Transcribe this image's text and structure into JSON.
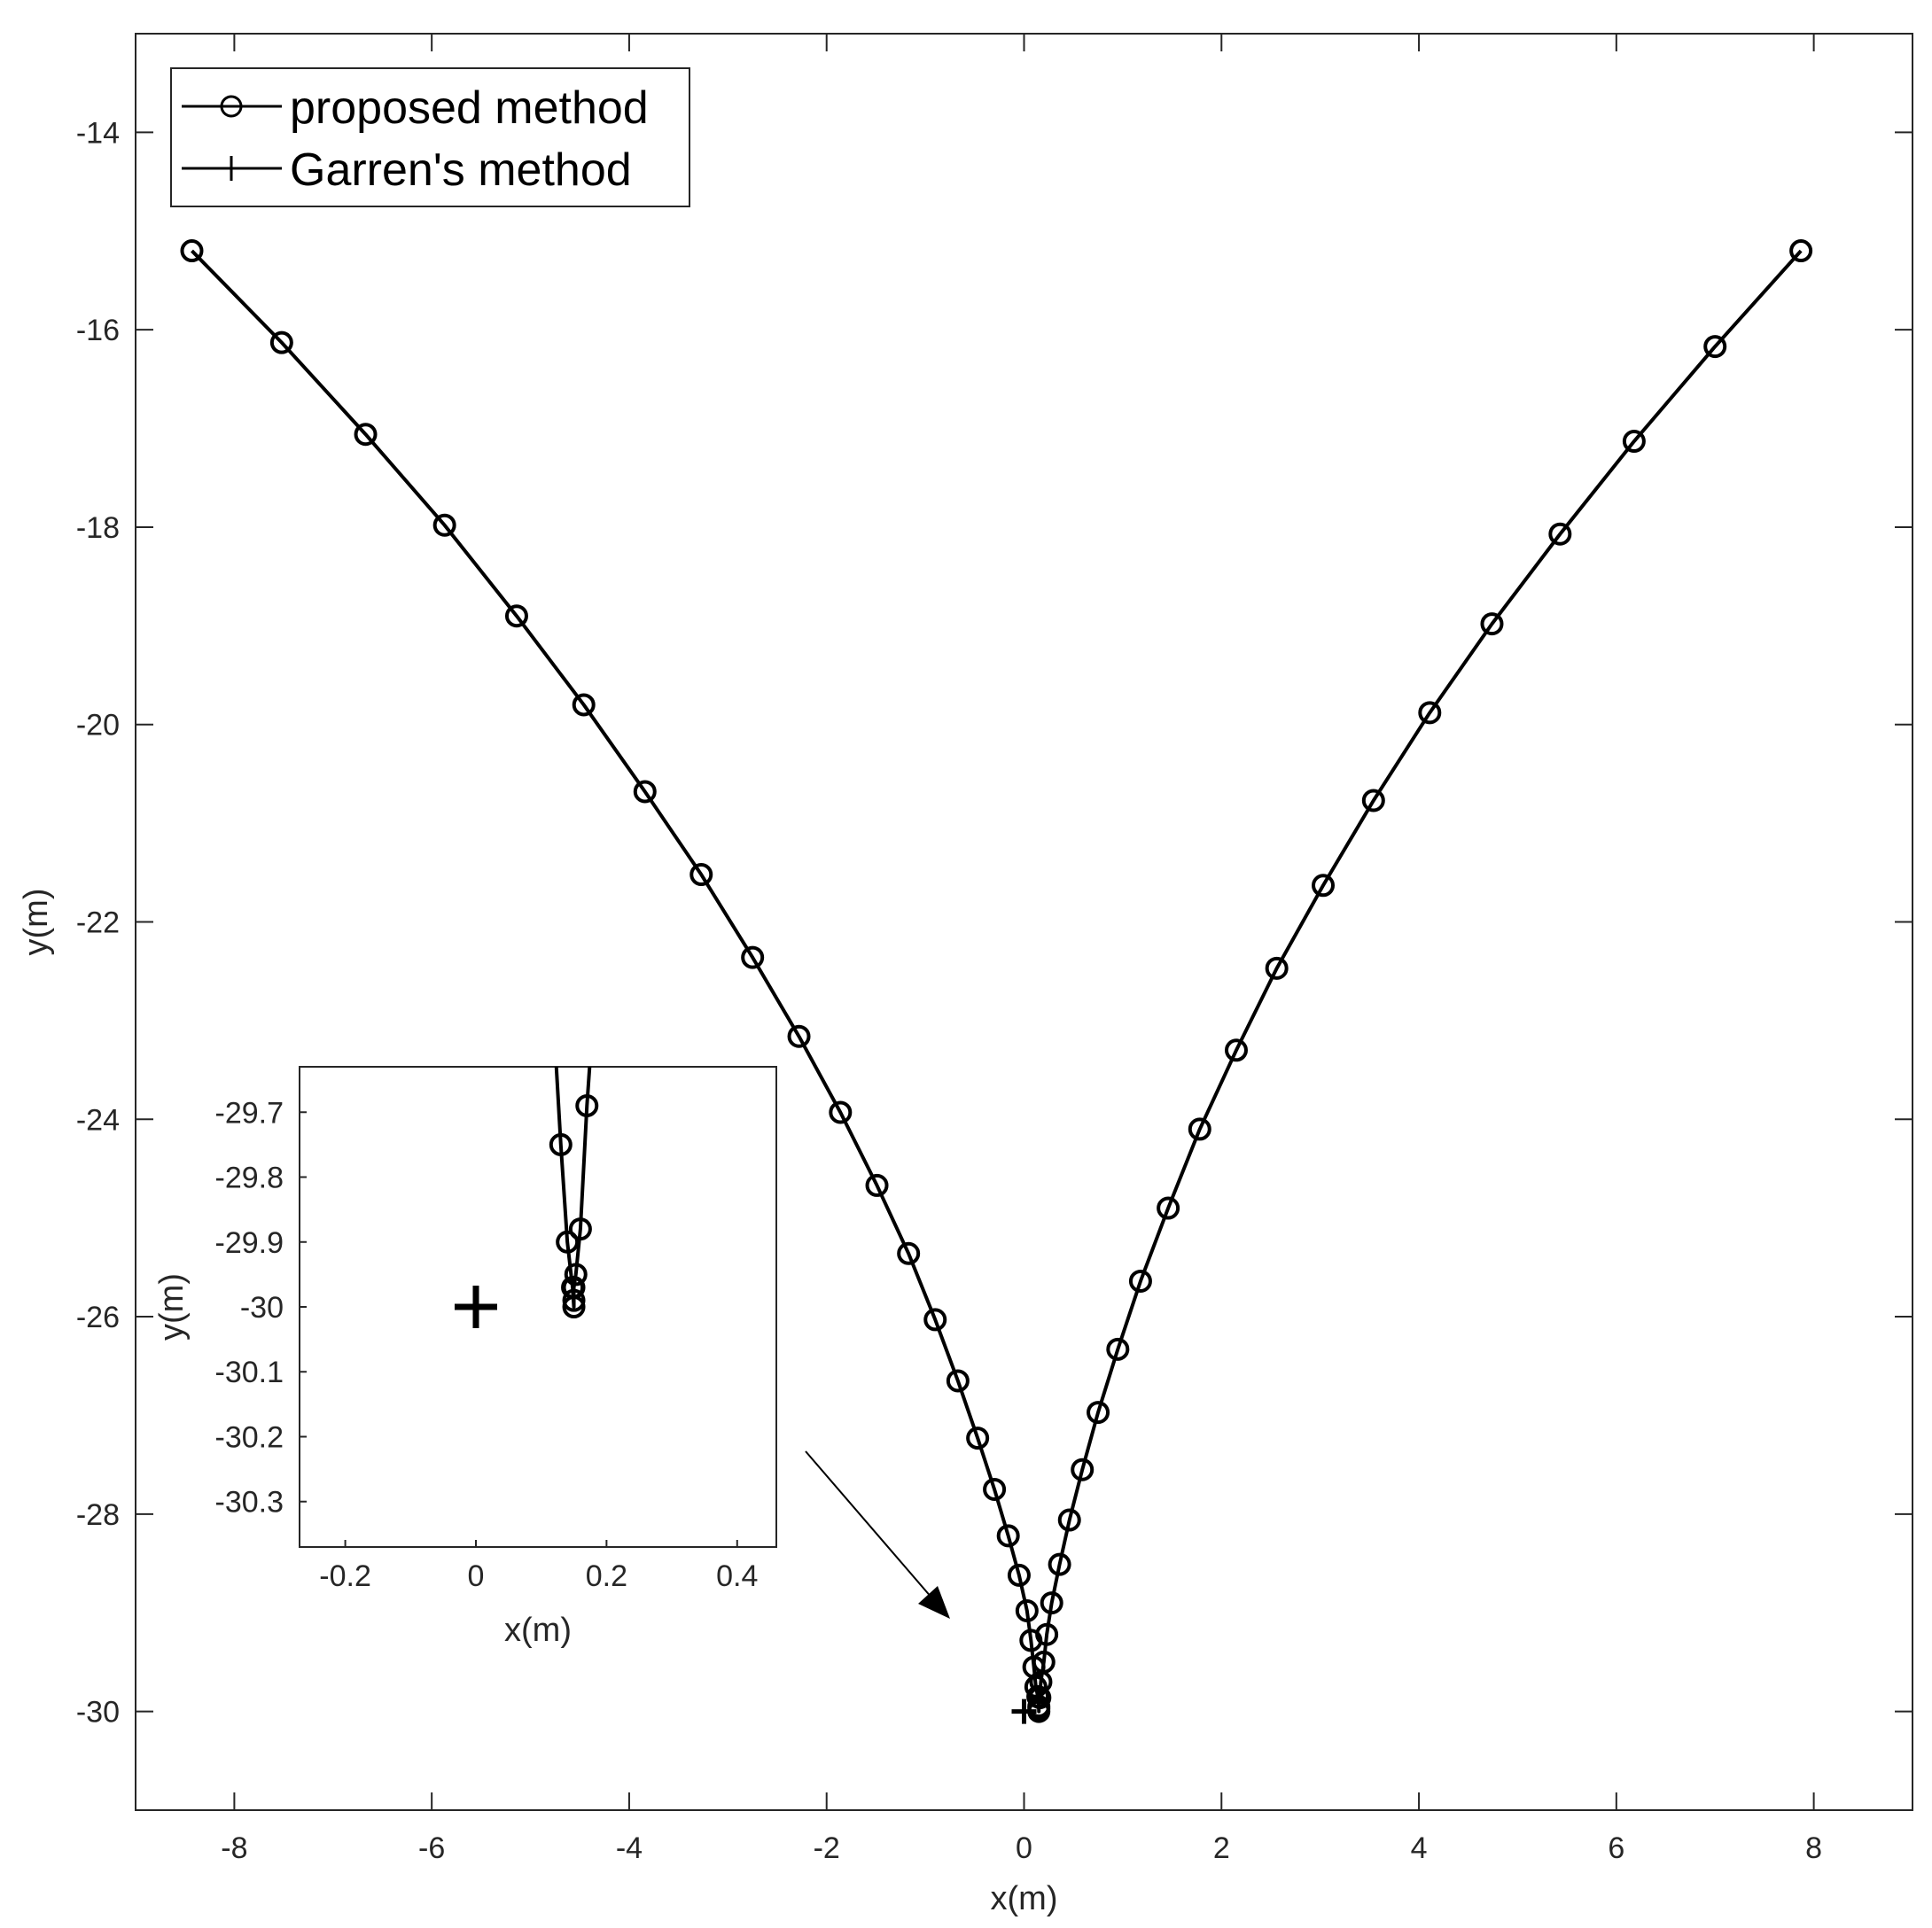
{
  "chart_data": [
    {
      "type": "line",
      "xlabel": "x(m)",
      "ylabel": "y(m)",
      "xlim": [
        -9,
        9
      ],
      "ylim": [
        -31,
        -13
      ],
      "xticks": [
        -8,
        -6,
        -4,
        -2,
        0,
        2,
        4,
        6,
        8
      ],
      "yticks": [
        -14,
        -16,
        -18,
        -20,
        -22,
        -24,
        -26,
        -28,
        -30
      ],
      "xtick_labels": [
        "-8",
        "-6",
        "-4",
        "-2",
        "0",
        "2",
        "4",
        "6",
        "8"
      ],
      "ytick_labels": [
        "-14",
        "-16",
        "-18",
        "-20",
        "-22",
        "-24",
        "-26",
        "-28",
        "-30"
      ],
      "grid": false,
      "legend_position": "top-left",
      "colors": {
        "line": "#000000",
        "axis": "#262626",
        "background": "#ffffff"
      },
      "series": [
        {
          "name": "proposed method",
          "marker": "circle",
          "x": [
            -8.43,
            -7.52,
            -6.67,
            -5.87,
            -5.14,
            -4.46,
            -3.84,
            -3.27,
            -2.75,
            -2.28,
            -1.86,
            -1.49,
            -1.17,
            -0.9,
            -0.67,
            -0.47,
            -0.3,
            -0.16,
            -0.05,
            0.03,
            0.07,
            0.1,
            0.12,
            0.14,
            0.15,
            0.15,
            0.15,
            0.16,
            0.17,
            0.2,
            0.23,
            0.28,
            0.36,
            0.46,
            0.59,
            0.75,
            0.95,
            1.18,
            1.46,
            1.78,
            2.15,
            2.56,
            3.03,
            3.54,
            4.11,
            4.74,
            5.43,
            6.18,
            7.0,
            7.87
          ],
          "y": [
            -15.2,
            -16.13,
            -17.06,
            -17.98,
            -18.9,
            -19.8,
            -20.68,
            -21.52,
            -22.36,
            -23.16,
            -23.93,
            -24.67,
            -25.36,
            -26.03,
            -26.65,
            -27.23,
            -27.75,
            -28.22,
            -28.62,
            -28.98,
            -29.28,
            -29.55,
            -29.75,
            -29.85,
            -29.97,
            -30.0,
            -29.95,
            -29.86,
            -29.7,
            -29.5,
            -29.22,
            -28.9,
            -28.51,
            -28.06,
            -27.55,
            -26.97,
            -26.33,
            -25.64,
            -24.9,
            -24.1,
            -23.3,
            -22.47,
            -21.63,
            -20.77,
            -19.88,
            -18.98,
            -18.07,
            -17.13,
            -16.17,
            -15.2
          ]
        },
        {
          "name": "Garren's method",
          "marker": "plus",
          "x": [
            0.0
          ],
          "y": [
            -30.0
          ]
        }
      ]
    },
    {
      "type": "line",
      "xlabel": "x(m)",
      "ylabel": "y(m)",
      "xlim": [
        -0.27,
        0.46
      ],
      "ylim": [
        -30.37,
        -29.63
      ],
      "xticks": [
        -0.2,
        0,
        0.2,
        0.4
      ],
      "yticks": [
        -29.7,
        -29.8,
        -29.9,
        -30,
        -30.1,
        -30.2,
        -30.3
      ],
      "xtick_labels": [
        "-0.2",
        "0",
        "0.2",
        "0.4"
      ],
      "ytick_labels": [
        "-29.7",
        "-29.8",
        "-29.9",
        "-30",
        "-30.1",
        "-30.2",
        "-30.3"
      ],
      "grid": false,
      "series": [
        {
          "marker": "circle",
          "x": [
            0.11,
            0.13,
            0.14,
            0.148,
            0.15,
            0.15,
            0.15,
            0.153,
            0.16,
            0.17,
            0.19
          ],
          "y": [
            -29.4,
            -29.75,
            -29.9,
            -29.97,
            -30.0,
            -29.99,
            -29.97,
            -29.95,
            -29.88,
            -29.69,
            -29.4
          ]
        },
        {
          "marker": "plus",
          "x": [
            0.0
          ],
          "y": [
            -30.0
          ]
        }
      ]
    }
  ],
  "legend": {
    "entries": [
      {
        "label": "proposed method",
        "marker": "circle"
      },
      {
        "label": "Garren's method",
        "marker": "plus"
      }
    ]
  }
}
